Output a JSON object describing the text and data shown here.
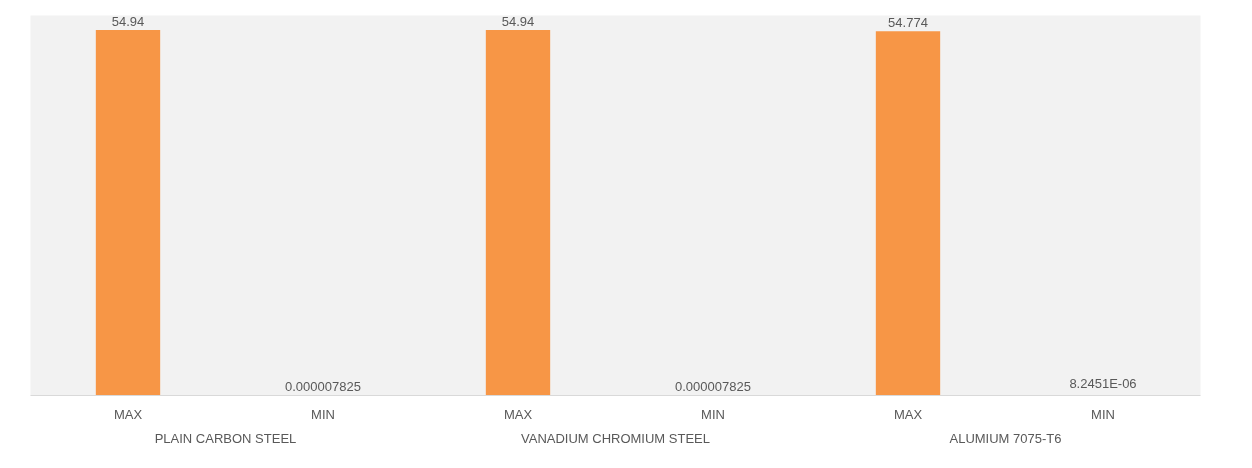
{
  "chart_data": {
    "type": "bar",
    "categories": [
      "MAX",
      "MIN",
      "MAX",
      "MIN",
      "MAX",
      "MIN"
    ],
    "values": [
      54.94,
      7.825e-06,
      54.94,
      7.825e-06,
      54.774,
      8.2451e-06
    ],
    "value_labels": [
      "54.94",
      "0.000007825",
      "54.94",
      "0.000007825",
      "54.774",
      "8.2451E-06"
    ],
    "annotations": [
      "PLAIN CARBON STEEL",
      "VANADIUM CHROMIUM STEEL",
      "ALUMIUM 7075-T6"
    ],
    "color": "#f79646",
    "grid": false
  }
}
